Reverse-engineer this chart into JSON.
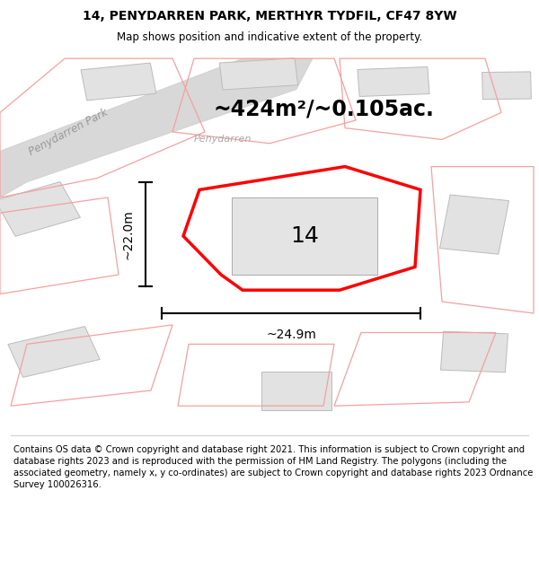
{
  "title": "14, PENYDARREN PARK, MERTHYR TYDFIL, CF47 8YW",
  "subtitle": "Map shows position and indicative extent of the property.",
  "area_text": "~424m²/~0.105ac.",
  "number_label": "14",
  "width_label": "~24.9m",
  "height_label": "~22.0m",
  "footer": "Contains OS data © Crown copyright and database right 2021. This information is subject to Crown copyright and database rights 2023 and is reproduced with the permission of HM Land Registry. The polygons (including the associated geometry, namely x, y co-ordinates) are subject to Crown copyright and database rights 2023 Ordnance Survey 100026316.",
  "bg_color": "#ffffff",
  "map_bg": "#f9f9f9",
  "property_outline_color": "#ff0000",
  "title_fontsize": 10,
  "subtitle_fontsize": 8.5,
  "area_fontsize": 17,
  "label_fontsize": 18,
  "dim_fontsize": 10,
  "footer_fontsize": 7.2
}
